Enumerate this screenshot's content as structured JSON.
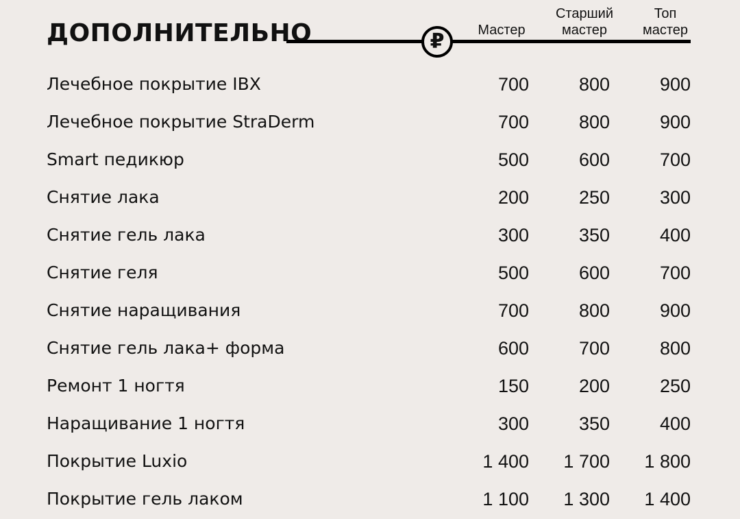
{
  "title": "ДОПОЛНИТЕЛЬНО",
  "currency_icon": "ruble-icon",
  "currency_symbol": "₽",
  "columns": [
    "Мастер",
    "Старший\nмастер",
    "Топ\nмастер"
  ],
  "columns_lines": [
    [
      "Мастер"
    ],
    [
      "Старший",
      "мастер"
    ],
    [
      "Топ",
      "мастер"
    ]
  ],
  "rows": [
    {
      "name": "Лечебное покрытие IBX",
      "prices": [
        "700",
        "800",
        "900"
      ]
    },
    {
      "name": "Лечебное покрытие StraDerm",
      "prices": [
        "700",
        "800",
        "900"
      ]
    },
    {
      "name": "Smart педикюр",
      "prices": [
        "500",
        "600",
        "700"
      ]
    },
    {
      "name": "Снятие лака",
      "prices": [
        "200",
        "250",
        "300"
      ]
    },
    {
      "name": "Снятие гель лака",
      "prices": [
        "300",
        "350",
        "400"
      ]
    },
    {
      "name": "Снятие геля",
      "prices": [
        "500",
        "600",
        "700"
      ]
    },
    {
      "name": "Снятие наращивания",
      "prices": [
        "700",
        "800",
        "900"
      ]
    },
    {
      "name": "Снятие гель лака+ форма",
      "prices": [
        "600",
        "700",
        "800"
      ]
    },
    {
      "name": "Ремонт 1 ногтя",
      "prices": [
        "150",
        "200",
        "250"
      ]
    },
    {
      "name": "Наращивание 1 ногтя",
      "prices": [
        "300",
        "350",
        "400"
      ]
    },
    {
      "name": "Покрытие Luxio",
      "prices": [
        "1 400",
        "1 700",
        "1 800"
      ]
    },
    {
      "name": "Покрытие гель лаком",
      "prices": [
        "1 100",
        "1 300",
        "1 400"
      ]
    }
  ]
}
